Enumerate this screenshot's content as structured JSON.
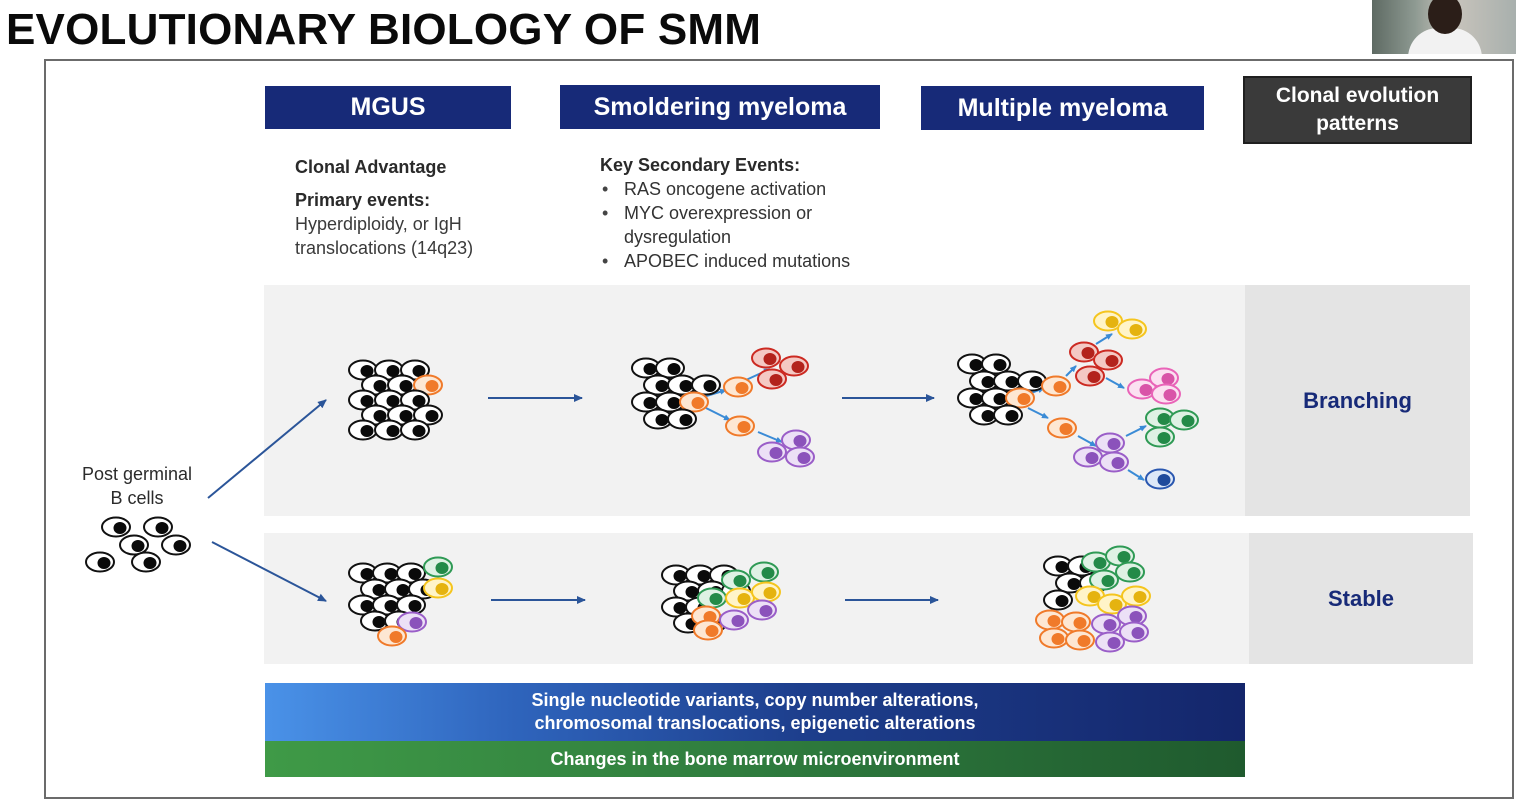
{
  "title": "EVOLUTIONARY BIOLOGY OF SMM",
  "stages": {
    "mgus": "MGUS",
    "smoldering": "Smoldering myeloma",
    "multiple": "Multiple myeloma",
    "patterns": "Clonal evolution patterns"
  },
  "mgus_info": {
    "heading1": "Clonal Advantage",
    "heading2": "Primary events:",
    "line1": "Hyperdiploidy, or IgH",
    "line2": "translocations (14q23)"
  },
  "smoldering_info": {
    "heading": "Key Secondary Events:",
    "bullets": [
      "RAS oncogene activation",
      "MYC overexpression or",
      "APOBEC induced mutations"
    ],
    "bullet2_continued": "dysregulation"
  },
  "origin": {
    "line1": "Post germinal",
    "line2": "B cells"
  },
  "patterns": {
    "branching": "Branching",
    "stable": "Stable"
  },
  "bars": {
    "alterations_line1": "Single nucleotide variants, copy number alterations,",
    "alterations_line2": "chromosomal translocations, epigenetic alterations",
    "microenvironment": "Changes in the bone marrow  microenvironment"
  },
  "colors": {
    "header_navy": "#172a78",
    "pattern_dark": "#3a3a3a",
    "cell_black": "#111111",
    "clone_orange": "#f07a2a",
    "clone_red": "#cc2a22",
    "clone_purple": "#9a5ec8",
    "clone_yellow": "#f5c51e",
    "clone_pink": "#e964b8",
    "clone_green": "#2f9a55",
    "clone_blue": "#2a57b0",
    "arrow_blue": "#2b5599"
  }
}
